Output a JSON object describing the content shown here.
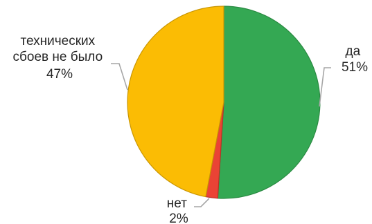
{
  "chart_data": {
    "type": "pie",
    "slices": [
      {
        "name": "да",
        "value": 51,
        "label_pct": "51%",
        "color": "#34A853",
        "edge": "#2A8A42"
      },
      {
        "name": "нет",
        "value": 2,
        "label_pct": "2%",
        "color": "#EA4335",
        "edge": "#B93226"
      },
      {
        "name": "технических сбоев не было",
        "value": 47,
        "label_pct": "47%",
        "color": "#FBBC04",
        "edge": "#C99603"
      }
    ],
    "label_lines": {
      "yes": [
        "да",
        "51%"
      ],
      "no": [
        "нет",
        "2%"
      ],
      "none": [
        "технических",
        "сбоев не было",
        "47%"
      ]
    },
    "leader_color": "#A6A6A6",
    "start_angle": "12 o'clock, clockwise"
  }
}
